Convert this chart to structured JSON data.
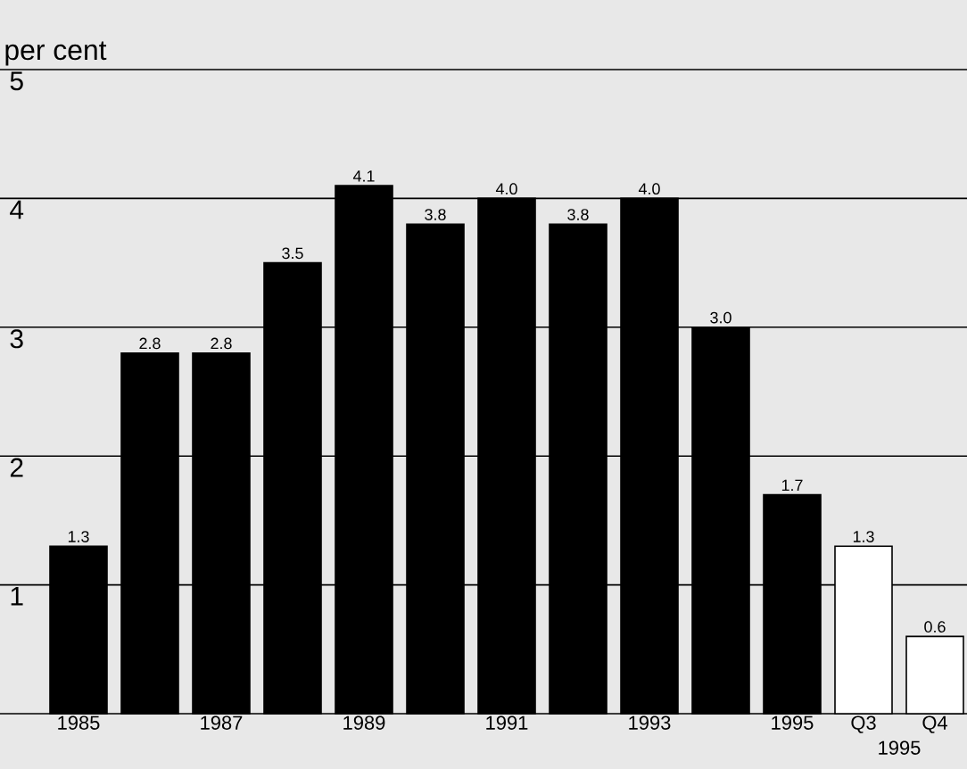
{
  "chart_data": {
    "type": "bar",
    "ylabel": "per cent",
    "categories": [
      "1985",
      null,
      "1987",
      null,
      "1989",
      null,
      "1991",
      null,
      "1993",
      null,
      "1995",
      "Q3",
      "Q4"
    ],
    "values": [
      1.3,
      2.8,
      2.8,
      3.5,
      4.1,
      3.8,
      4.0,
      3.8,
      4.0,
      3.0,
      1.7,
      1.3,
      0.6
    ],
    "colors": [
      "#000000",
      "#000000",
      "#000000",
      "#000000",
      "#000000",
      "#000000",
      "#000000",
      "#000000",
      "#000000",
      "#000000",
      "#000000",
      "#ffffff",
      "#ffffff"
    ],
    "value_labels": [
      "1.3",
      "2.8",
      "2.8",
      "3.5",
      "4.1",
      "3.8",
      "4.0",
      "3.8",
      "4.0",
      "3.0",
      "1.7",
      "1.3",
      "0.6"
    ],
    "ylim": [
      0,
      5
    ],
    "yticks": [
      1,
      2,
      3,
      4,
      5
    ],
    "grid": "y",
    "annotations": [
      "1995"
    ]
  }
}
